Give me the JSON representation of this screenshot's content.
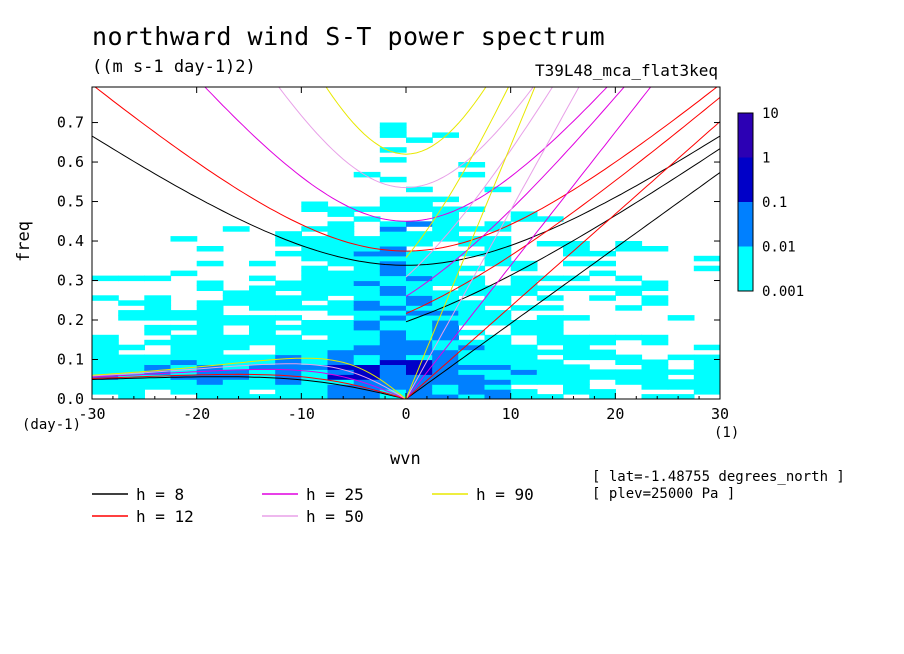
{
  "title": "northward wind S-T power spectrum",
  "units": "((m s-1 day-1)2)",
  "model_label": "T39L48_mca_flat3keq",
  "meta_lines": [
    "[ lat=-1.48755 degrees_north ]",
    "[ plev=25000 Pa ]"
  ],
  "colors": {
    "level1": "#00ffff",
    "level2": "#0080ff",
    "level3": "#0000c8",
    "level4": "#2c00b4",
    "h8": "#000000",
    "h12": "#ff0000",
    "h25": "#e000e0",
    "h50": "#e8a0e8",
    "h90": "#e8e800"
  },
  "chart_data": {
    "type": "heatmap",
    "title": "northward wind S-T power spectrum",
    "subtitle": "((m s-1 day-1)2)",
    "xlabel": "wvn",
    "ylabel": "freq",
    "x_unit": "(1)",
    "y_unit": "(day-1)",
    "xlim": [
      -30,
      30
    ],
    "ylim": [
      0,
      0.79
    ],
    "x_ticks": [
      -30,
      -20,
      -10,
      0,
      10,
      20,
      30
    ],
    "y_ticks": [
      0.0,
      0.1,
      0.2,
      0.3,
      0.4,
      0.5,
      0.6,
      0.7
    ],
    "x_tick_labels": [
      "-30",
      "-20",
      "-10",
      "0",
      "10",
      "20",
      "30"
    ],
    "y_tick_labels": [
      "0.0",
      "0.1",
      "0.2",
      "0.3",
      "0.4",
      "0.5",
      "0.6",
      "0.7"
    ],
    "colorbar": {
      "levels": [
        0.001,
        0.01,
        0.1,
        1,
        10
      ],
      "labels": [
        "0.001",
        "0.01",
        "0.1",
        "1",
        "10"
      ]
    },
    "dispersion_curves": [
      {
        "name": "h =  8",
        "h": 8,
        "color": "#000000"
      },
      {
        "name": "h = 12",
        "h": 12,
        "color": "#ff0000"
      },
      {
        "name": "h = 25",
        "h": 25,
        "color": "#e000e0"
      },
      {
        "name": "h = 50",
        "h": 50,
        "color": "#e8a0e8"
      },
      {
        "name": "h = 90",
        "h": 90,
        "color": "#e8e800"
      }
    ]
  }
}
